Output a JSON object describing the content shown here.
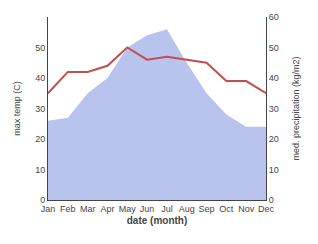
{
  "chart_data": {
    "type": "line",
    "xlabel": "date (month)",
    "ylabel": "max temp (C)",
    "y2label": "med. precipitation (kg/m2)",
    "categories": [
      "Jan",
      "Feb",
      "Mar",
      "Apr",
      "May",
      "Jun",
      "Jul",
      "Aug",
      "Sep",
      "Oct",
      "Nov",
      "Dec"
    ],
    "series": [
      {
        "type": "line",
        "color": "#c0504d",
        "values": [
          35,
          42,
          42,
          44,
          50,
          46,
          47,
          46,
          45,
          39,
          39,
          35
        ]
      },
      {
        "type": "area",
        "color": "#b8c4ed",
        "axis": "y2",
        "values": [
          26,
          27,
          35,
          40,
          50,
          54,
          56,
          45,
          35,
          28,
          24,
          24
        ]
      }
    ],
    "ylim": [
      0,
      60
    ],
    "yticks": [
      0,
      10,
      20,
      30,
      40,
      50
    ],
    "y2lim": [
      0,
      60
    ],
    "y2ticks": [
      0,
      10,
      20,
      30,
      40,
      50,
      60
    ],
    "grid": false
  }
}
